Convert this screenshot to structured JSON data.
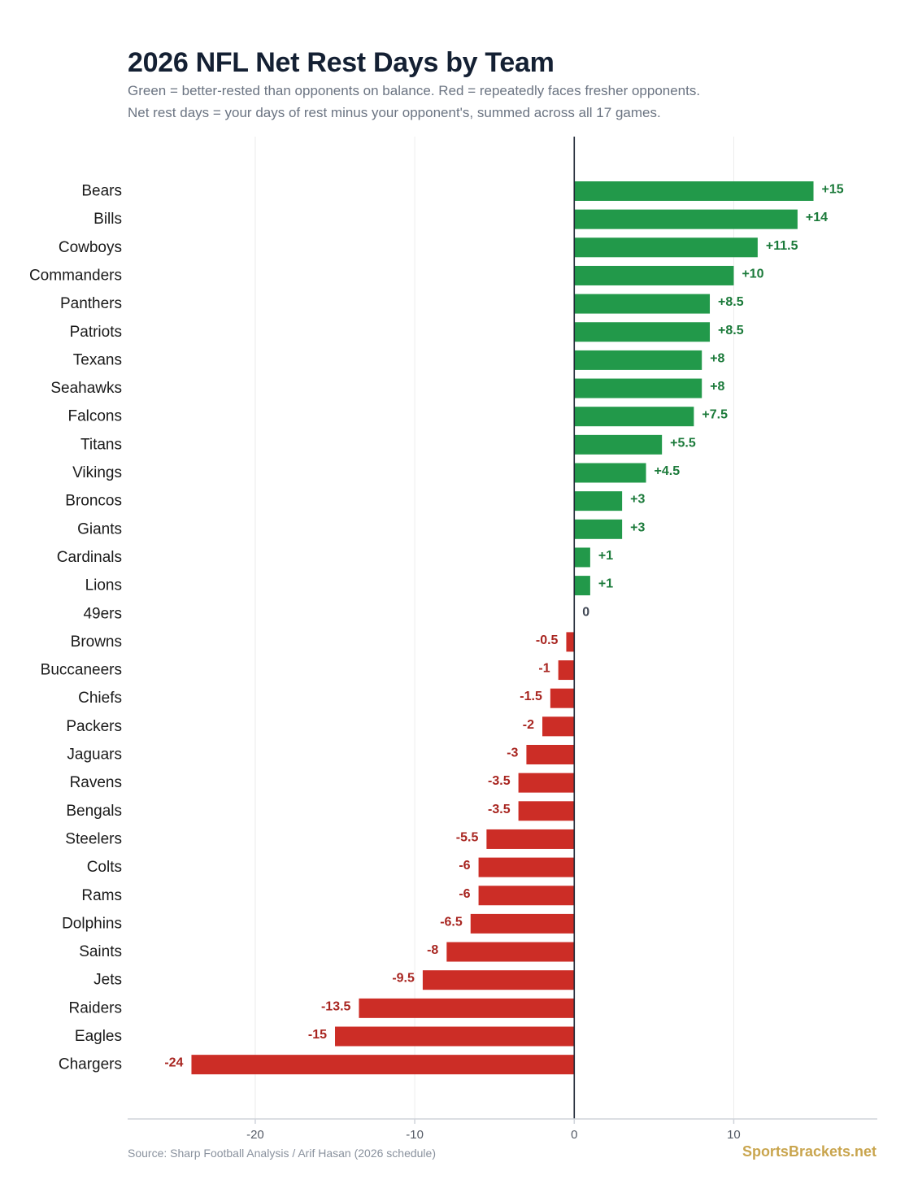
{
  "title": "2026 NFL Net Rest Days by Team",
  "subtitle_line1": "Green = better-rested than opponents on balance.  Red = repeatedly faces fresher opponents.",
  "subtitle_line2": "Net rest days = your days of rest minus your opponent's, summed across all 17 games.",
  "source": "Source: Sharp Football Analysis / Arif Hasan (2026 schedule)",
  "brand": "SportsBrackets.net",
  "colors": {
    "positive": "#22994a",
    "positive_label": "#1b7a3a",
    "negative": "#cc2d26",
    "negative_label": "#a82520",
    "zero_label": "#404754",
    "grid": "#ececec",
    "zero_line": "#1c2533",
    "axis": "#cfd3da",
    "category_text": "#1a1a1a",
    "tick_text": "#555b66"
  },
  "chart_data": {
    "type": "bar",
    "orientation": "horizontal",
    "categories": [
      "Bears",
      "Bills",
      "Cowboys",
      "Commanders",
      "Panthers",
      "Patriots",
      "Texans",
      "Seahawks",
      "Falcons",
      "Titans",
      "Vikings",
      "Broncos",
      "Giants",
      "Cardinals",
      "Lions",
      "49ers",
      "Browns",
      "Buccaneers",
      "Chiefs",
      "Packers",
      "Jaguars",
      "Ravens",
      "Bengals",
      "Steelers",
      "Colts",
      "Rams",
      "Dolphins",
      "Saints",
      "Jets",
      "Raiders",
      "Eagles",
      "Chargers"
    ],
    "values": [
      15,
      14,
      11.5,
      10,
      8.5,
      8.5,
      8,
      8,
      7.5,
      5.5,
      4.5,
      3,
      3,
      1,
      1,
      0,
      -0.5,
      -1,
      -1.5,
      -2,
      -3,
      -3.5,
      -3.5,
      -5.5,
      -6,
      -6,
      -6.5,
      -8,
      -9.5,
      -13.5,
      -15,
      -24
    ],
    "value_labels": [
      "+15",
      "+14",
      "+11.5",
      "+10",
      "+8.5",
      "+8.5",
      "+8",
      "+8",
      "+7.5",
      "+5.5",
      "+4.5",
      "+3",
      "+3",
      "+1",
      "+1",
      "0",
      "-0.5",
      "-1",
      "-1.5",
      "-2",
      "-3",
      "-3.5",
      "-3.5",
      "-5.5",
      "-6",
      "-6",
      "-6.5",
      "-8",
      "-9.5",
      "-13.5",
      "-15",
      "-24"
    ],
    "xlim": [
      -28,
      19
    ],
    "xticks": [
      -20,
      -10,
      0,
      10
    ],
    "xtick_labels": [
      "-20",
      "-10",
      "0",
      "10"
    ],
    "grid": true,
    "xlabel": "",
    "ylabel": ""
  }
}
